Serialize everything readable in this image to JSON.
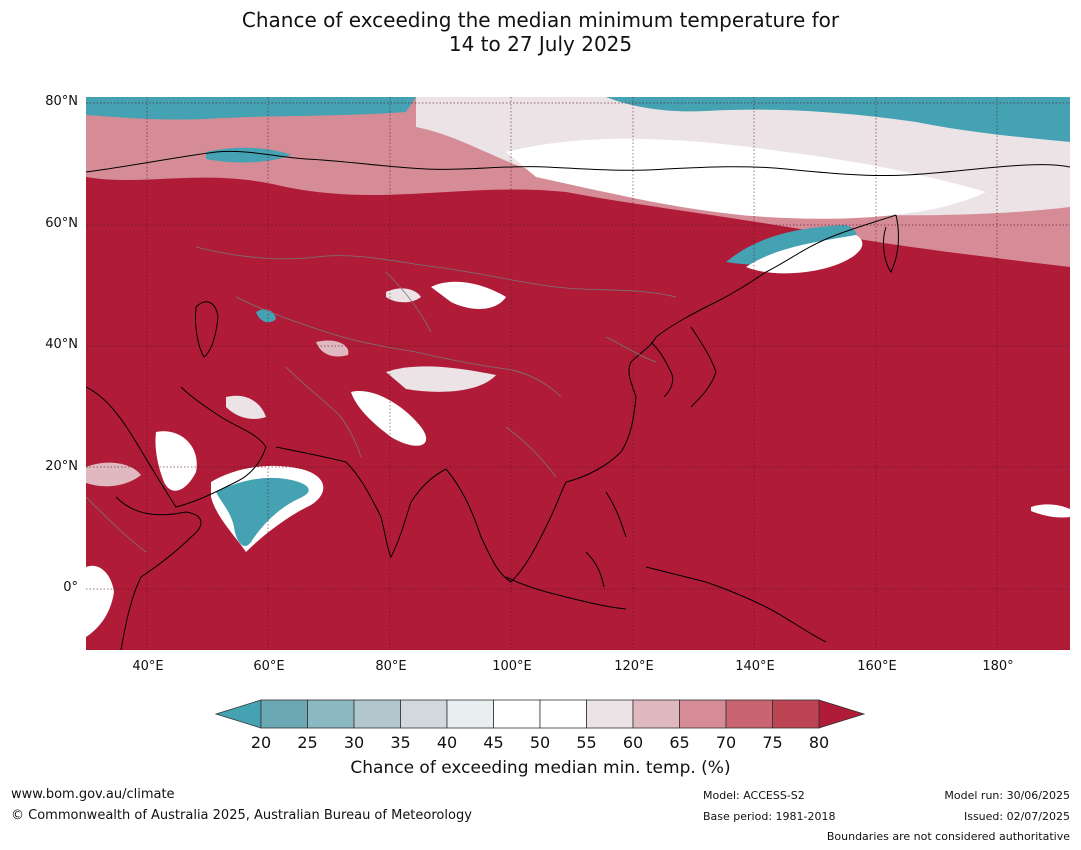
{
  "title_line1": "Chance of exceeding the median minimum temperature for",
  "title_line2": "14 to 27 July 2025",
  "lat_labels": [
    "80°N",
    "60°N",
    "40°N",
    "20°N",
    "0°"
  ],
  "lon_labels": [
    "40°E",
    "60°E",
    "80°E",
    "100°E",
    "120°E",
    "140°E",
    "160°E",
    "180°"
  ],
  "colorbar": {
    "ticks": [
      "20",
      "25",
      "30",
      "35",
      "40",
      "45",
      "50",
      "55",
      "60",
      "65",
      "70",
      "75",
      "80"
    ],
    "label": "Chance of exceeding median min. temp. (%)",
    "colors": [
      "#44a2b3",
      "#6aa9b4",
      "#8cb8c3",
      "#b1c7cd",
      "#d2d8db",
      "#e9eef0",
      "#ffffff",
      "#ffffff",
      "#ebe3e5",
      "#e0b8bf",
      "#d58c96",
      "#c96570",
      "#bd4452",
      "#b01c38"
    ]
  },
  "map": {
    "projection": "equirectangular",
    "lon_range": [
      30,
      192
    ],
    "lat_range": [
      -10,
      81
    ],
    "background_color": "#b01c38",
    "cool_color": "#44a2b3"
  },
  "footer": {
    "url": "www.bom.gov.au/climate",
    "copyright": "© Commonwealth of Australia 2025, Australian Bureau of Meteorology",
    "model": "Model: ACCESS-S2",
    "base_period": "Base period: 1981-2018",
    "model_run": "Model run: 30/06/2025",
    "issued": "Issued: 02/07/2025",
    "disclaimer": "Boundaries are not considered authoritative"
  }
}
